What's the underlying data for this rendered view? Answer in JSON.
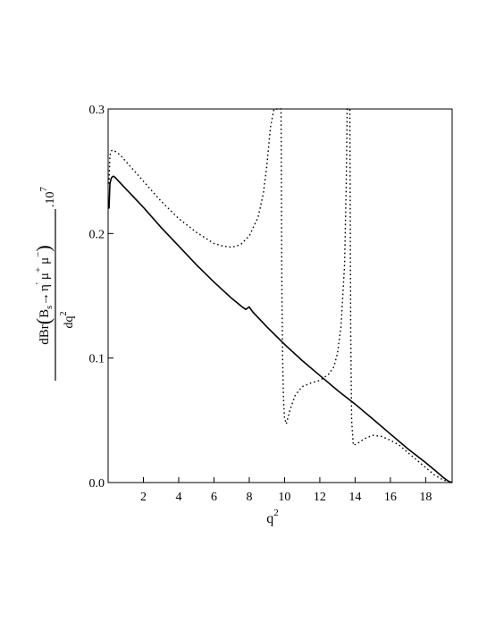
{
  "chart_data": {
    "type": "line",
    "title": "",
    "xlabel": {
      "base": "q",
      "sup": "2"
    },
    "ylabel": {
      "numerator": {
        "prefix": "dBr",
        "B": "B",
        "B_sub": "s",
        "arrow": "→",
        "eta": "η",
        "prime": "'",
        "mu1": "μ",
        "mu1_sup": "+",
        "mu2": "μ",
        "mu2_sup": "−"
      },
      "denominator": {
        "base": "dq",
        "sup": "2"
      },
      "factor": {
        "dot": ".10",
        "sup": "7"
      }
    },
    "xlim": [
      0,
      19.5
    ],
    "ylim": [
      0,
      0.3
    ],
    "x_ticks": [
      2,
      4,
      6,
      8,
      10,
      12,
      14,
      16,
      18
    ],
    "y_ticks": [
      0.0,
      0.1,
      0.2,
      0.3
    ],
    "x_tick_labels": [
      "2",
      "4",
      "6",
      "8",
      "10",
      "12",
      "14",
      "16",
      "18"
    ],
    "y_tick_labels": [
      "0.0",
      "0.1",
      "0.2",
      "0.3"
    ],
    "series": [
      {
        "style": "solid",
        "x": [
          0.05,
          0.1,
          0.15,
          0.2,
          0.3,
          0.4,
          0.6,
          1,
          2,
          3,
          4,
          5,
          6,
          7,
          7.6,
          7.8,
          8.0,
          8.2,
          9,
          10,
          11,
          12,
          13,
          14,
          15,
          16,
          17,
          18,
          18.6,
          19.0,
          19.3,
          19.5
        ],
        "y": [
          0.22,
          0.24,
          0.243,
          0.245,
          0.246,
          0.245,
          0.242,
          0.236,
          0.221,
          0.205,
          0.19,
          0.175,
          0.161,
          0.148,
          0.141,
          0.139,
          0.141,
          0.137,
          0.125,
          0.111,
          0.098,
          0.086,
          0.074,
          0.063,
          0.051,
          0.039,
          0.027,
          0.016,
          0.009,
          0.004,
          0.001,
          0.0
        ]
      },
      {
        "style": "dotted",
        "x": [
          0.05,
          0.1,
          0.15,
          0.25,
          0.4,
          0.7,
          1,
          2,
          3,
          4,
          5,
          6,
          6.5,
          7,
          7.5,
          8,
          8.5,
          8.8,
          9.0,
          9.2,
          9.4,
          9.6,
          9.7,
          9.75,
          9.8,
          9.85,
          9.9,
          9.95,
          10.0,
          10.1,
          10.3,
          10.6,
          11,
          11.5,
          12,
          12.5,
          12.8,
          13.0,
          13.2,
          13.4,
          13.5,
          13.55,
          13.6,
          13.65,
          13.7,
          13.75,
          13.8,
          13.9,
          14.1,
          14.5,
          15,
          15.5,
          16,
          16.5,
          17,
          17.5,
          18,
          18.5,
          19.0,
          19.5
        ],
        "y": [
          0.24,
          0.262,
          0.266,
          0.267,
          0.266,
          0.263,
          0.258,
          0.242,
          0.226,
          0.212,
          0.201,
          0.192,
          0.19,
          0.189,
          0.191,
          0.198,
          0.213,
          0.232,
          0.255,
          0.285,
          0.3,
          0.3,
          0.3,
          0.3,
          0.3,
          0.15,
          0.09,
          0.065,
          0.052,
          0.047,
          0.058,
          0.07,
          0.077,
          0.08,
          0.082,
          0.087,
          0.093,
          0.104,
          0.125,
          0.175,
          0.24,
          0.3,
          0.3,
          0.3,
          0.3,
          0.12,
          0.05,
          0.03,
          0.031,
          0.035,
          0.038,
          0.037,
          0.034,
          0.03,
          0.024,
          0.018,
          0.012,
          0.006,
          0.002,
          0.0
        ]
      }
    ],
    "grid": false,
    "legend": "none"
  }
}
